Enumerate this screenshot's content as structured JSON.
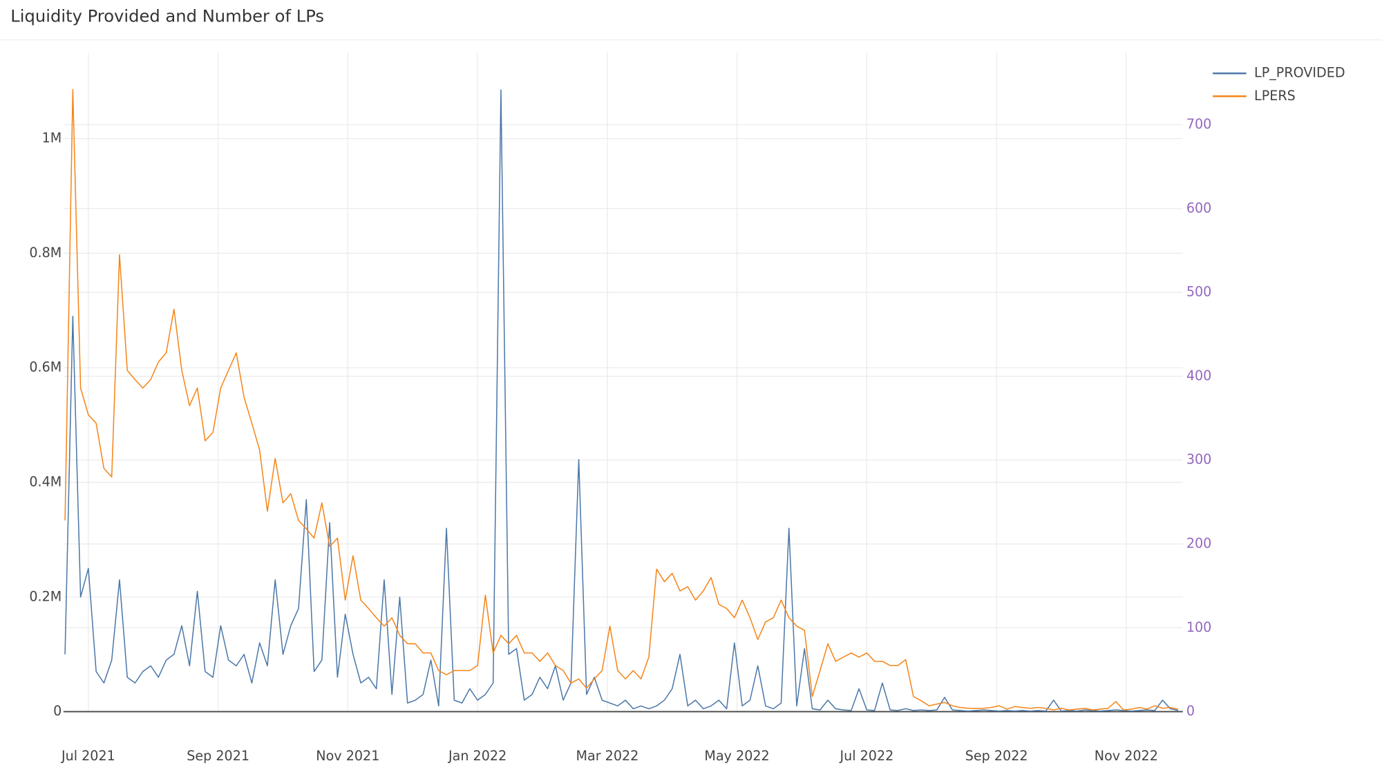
{
  "chart_data": {
    "type": "line",
    "title": "Liquidity Provided and Number of LPs",
    "x": [
      2021.47,
      2021.48,
      2021.49,
      2021.5,
      2021.51,
      2021.52,
      2021.53,
      2021.54,
      2021.55,
      2021.56,
      2021.57,
      2021.58,
      2021.59,
      2021.6,
      2021.61,
      2021.62,
      2021.63,
      2021.64,
      2021.65,
      2021.66,
      2021.67,
      2021.68,
      2021.69,
      2021.7,
      2021.71,
      2021.72,
      2021.73,
      2021.74,
      2021.75,
      2021.76,
      2021.77,
      2021.78,
      2021.79,
      2021.8,
      2021.81,
      2021.82,
      2021.83,
      2021.84,
      2021.85,
      2021.86,
      2021.87,
      2021.88,
      2021.89,
      2021.9,
      2021.91,
      2021.92,
      2021.93,
      2021.94,
      2021.95,
      2021.96,
      2021.97,
      2021.98,
      2021.99,
      2022.0,
      2022.01,
      2022.02,
      2022.03,
      2022.04,
      2022.05,
      2022.06,
      2022.07,
      2022.08,
      2022.09,
      2022.1,
      2022.11,
      2022.12,
      2022.13,
      2022.14,
      2022.15,
      2022.16,
      2022.17,
      2022.18,
      2022.19,
      2022.2,
      2022.21,
      2022.22,
      2022.23,
      2022.24,
      2022.25,
      2022.26,
      2022.27,
      2022.28,
      2022.29,
      2022.3,
      2022.31,
      2022.32,
      2022.33,
      2022.34,
      2022.35,
      2022.36,
      2022.37,
      2022.38,
      2022.39,
      2022.4,
      2022.41,
      2022.42,
      2022.43,
      2022.44,
      2022.45,
      2022.46,
      2022.47,
      2022.48,
      2022.49,
      2022.5,
      2022.51,
      2022.52,
      2022.53,
      2022.54,
      2022.55,
      2022.56,
      2022.57,
      2022.58,
      2022.59,
      2022.6,
      2022.61,
      2022.62,
      2022.63,
      2022.64,
      2022.65,
      2022.66,
      2022.67,
      2022.68,
      2022.69,
      2022.7,
      2022.71,
      2022.72,
      2022.73,
      2022.74,
      2022.75,
      2022.76,
      2022.77,
      2022.78,
      2022.79,
      2022.8,
      2022.81,
      2022.82,
      2022.83,
      2022.84,
      2022.85,
      2022.86,
      2022.87,
      2022.88,
      2022.89,
      2022.9
    ],
    "xlim": [
      2021.468,
      2022.906
    ],
    "xticks": [
      {
        "value": 2021.5,
        "label": "Jul 2021"
      },
      {
        "value": 2021.6667,
        "label": "Sep 2021"
      },
      {
        "value": 2021.8333,
        "label": "Nov 2021"
      },
      {
        "value": 2022.0,
        "label": "Jan 2022"
      },
      {
        "value": 2022.1667,
        "label": "Mar 2022"
      },
      {
        "value": 2022.3333,
        "label": "May 2022"
      },
      {
        "value": 2022.5,
        "label": "Jul 2022"
      },
      {
        "value": 2022.6667,
        "label": "Sep 2022"
      },
      {
        "value": 2022.8333,
        "label": "Nov 2022"
      }
    ],
    "ylim": [
      0,
      1150000
    ],
    "yticks": [
      0,
      {
        "value": 200000,
        "label": "0.2M"
      },
      {
        "value": 400000,
        "label": "0.4M"
      },
      {
        "value": 600000,
        "label": "0.6M"
      },
      {
        "value": 800000,
        "label": "0.8M"
      },
      {
        "value": 1000000,
        "label": "1M"
      }
    ],
    "y2lim": [
      0,
      786
    ],
    "y2ticks": [
      0,
      100,
      200,
      300,
      400,
      500,
      600,
      700
    ],
    "y2_color": "#9467bd",
    "grid": true,
    "legend": "top-right",
    "series": [
      {
        "name": "LP_PROVIDED",
        "color": "#4c78a8",
        "axis": "y",
        "values": [
          100000,
          690000,
          200000,
          250000,
          70000,
          50000,
          90000,
          230000,
          60000,
          50000,
          70000,
          80000,
          60000,
          90000,
          100000,
          150000,
          80000,
          210000,
          70000,
          60000,
          150000,
          90000,
          80000,
          100000,
          50000,
          120000,
          80000,
          230000,
          100000,
          150000,
          180000,
          370000,
          70000,
          90000,
          330000,
          60000,
          170000,
          100000,
          50000,
          60000,
          40000,
          230000,
          30000,
          200000,
          15000,
          20000,
          30000,
          90000,
          10000,
          320000,
          20000,
          15000,
          40000,
          20000,
          30000,
          50000,
          1085000,
          100000,
          110000,
          20000,
          30000,
          60000,
          40000,
          80000,
          20000,
          50000,
          440000,
          30000,
          60000,
          20000,
          15000,
          10000,
          20000,
          5000,
          10000,
          5000,
          10000,
          20000,
          40000,
          100000,
          10000,
          20000,
          5000,
          10000,
          20000,
          5000,
          120000,
          10000,
          20000,
          80000,
          10000,
          5000,
          15000,
          320000,
          10000,
          110000,
          5000,
          3000,
          20000,
          5000,
          3000,
          2000,
          40000,
          3000,
          2000,
          50000,
          3000,
          2000,
          5000,
          2000,
          3000,
          2000,
          3000,
          25000,
          3000,
          2000,
          1000,
          2000,
          3000,
          2000,
          1000,
          2000,
          1000,
          2000,
          1000,
          2000,
          1000,
          20000,
          1000,
          2000,
          1000,
          3000,
          2000,
          1000,
          2000,
          3000,
          2000,
          1000,
          2000,
          3000,
          2000,
          20000,
          5000,
          2000
        ]
      },
      {
        "name": "LPERS",
        "color": "#f58518",
        "axis": "y2",
        "values": [
          228,
          742,
          386,
          354,
          344,
          290,
          280,
          545,
          407,
          396,
          386,
          396,
          417,
          428,
          480,
          407,
          365,
          386,
          323,
          333,
          386,
          407,
          428,
          375,
          344,
          312,
          239,
          302,
          249,
          260,
          228,
          218,
          207,
          249,
          197,
          207,
          133,
          186,
          133,
          123,
          112,
          102,
          112,
          91,
          81,
          81,
          70,
          70,
          49,
          44,
          49,
          49,
          49,
          55,
          139,
          70,
          91,
          81,
          91,
          70,
          70,
          60,
          70,
          55,
          49,
          34,
          39,
          28,
          39,
          49,
          102,
          49,
          39,
          49,
          39,
          65,
          170,
          155,
          165,
          144,
          149,
          133,
          144,
          160,
          128,
          123,
          112,
          133,
          112,
          86,
          107,
          112,
          133,
          112,
          102,
          97,
          18,
          49,
          81,
          60,
          65,
          70,
          65,
          70,
          60,
          60,
          55,
          55,
          62,
          18,
          13,
          7,
          9,
          11,
          7,
          5,
          4,
          4,
          4,
          5,
          7,
          3,
          6,
          5,
          4,
          5,
          4,
          2,
          4,
          2,
          3,
          4,
          2,
          3,
          4,
          12,
          2,
          3,
          5,
          3,
          7,
          4,
          5,
          3
        ]
      }
    ]
  }
}
